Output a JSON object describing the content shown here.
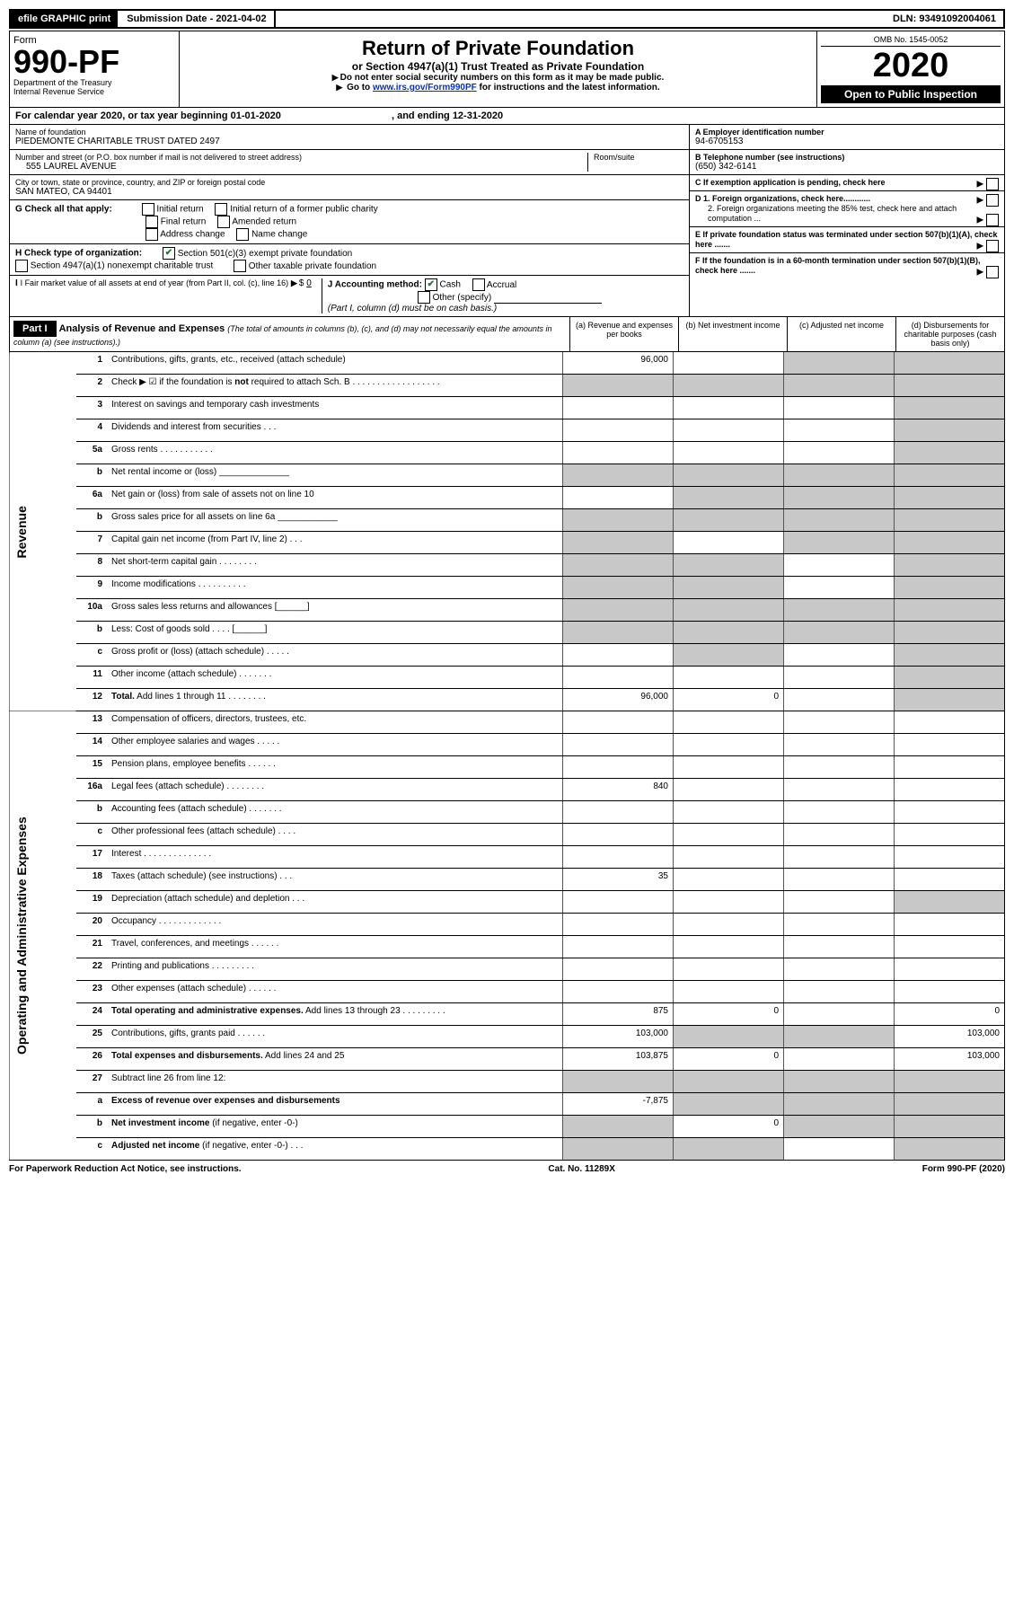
{
  "topbar": {
    "efile": "efile GRAPHIC print",
    "submission": "Submission Date - 2021-04-02",
    "dln": "DLN: 93491092004061"
  },
  "header": {
    "form_word": "Form",
    "form_number": "990-PF",
    "dept": "Department of the Treasury",
    "irs": "Internal Revenue Service",
    "title": "Return of Private Foundation",
    "subtitle": "or Section 4947(a)(1) Trust Treated as Private Foundation",
    "instr1": "Do not enter social security numbers on this form as it may be made public.",
    "instr2_pre": "Go to ",
    "instr2_link": "www.irs.gov/Form990PF",
    "instr2_post": " for instructions and the latest information.",
    "omb": "OMB No. 1545-0052",
    "year": "2020",
    "openpublic": "Open to Public Inspection"
  },
  "calendar": {
    "line": "For calendar year 2020, or tax year beginning 01-01-2020",
    "ending": ", and ending 12-31-2020"
  },
  "foundation": {
    "name_label": "Name of foundation",
    "name": "PIEDEMONTE CHARITABLE TRUST DATED 2497",
    "addr_label": "Number and street (or P.O. box number if mail is not delivered to street address)",
    "addr": "555 LAUREL AVENUE",
    "room_label": "Room/suite",
    "city_label": "City or town, state or province, country, and ZIP or foreign postal code",
    "city": "SAN MATEO, CA  94401"
  },
  "right_boxes": {
    "a_label": "A Employer identification number",
    "a_val": "94-6705153",
    "b_label": "B Telephone number (see instructions)",
    "b_val": "(650) 342-6141",
    "c_label": "C If exemption application is pending, check here",
    "d1": "D 1. Foreign organizations, check here............",
    "d2": "2. Foreign organizations meeting the 85% test, check here and attach computation ...",
    "e": "E  If private foundation status was terminated under section 507(b)(1)(A), check here .......",
    "f": "F  If the foundation is in a 60-month termination under section 507(b)(1)(B), check here ......."
  },
  "g": {
    "label": "G Check all that apply:",
    "opts": [
      "Initial return",
      "Initial return of a former public charity",
      "Final return",
      "Amended return",
      "Address change",
      "Name change"
    ]
  },
  "h": {
    "label": "H Check type of organization:",
    "opt1": "Section 501(c)(3) exempt private foundation",
    "opt2": "Section 4947(a)(1) nonexempt charitable trust",
    "opt3": "Other taxable private foundation"
  },
  "i": {
    "label": "I Fair market value of all assets at end of year (from Part II, col. (c), line 16)",
    "amount_prefix": "$",
    "amount": "0"
  },
  "j": {
    "label": "J Accounting method:",
    "cash": "Cash",
    "accrual": "Accrual",
    "other": "Other (specify)",
    "note": "(Part I, column (d) must be on cash basis.)"
  },
  "part1": {
    "label": "Part I",
    "title": "Analysis of Revenue and Expenses",
    "note": "(The total of amounts in columns (b), (c), and (d) may not necessarily equal the amounts in column (a) (see instructions).)",
    "col_a": "(a)   Revenue and expenses per books",
    "col_b": "(b)  Net investment income",
    "col_c": "(c)  Adjusted net income",
    "col_d": "(d)  Disbursements for charitable purposes (cash basis only)"
  },
  "side_labels": {
    "revenue": "Revenue",
    "expenses": "Operating and Administrative Expenses"
  },
  "rows": [
    {
      "n": "1",
      "desc": "Contributions, gifts, grants, etc., received (attach schedule)",
      "a": "96,000",
      "b": "",
      "c": "",
      "d": "",
      "shade": [
        "c",
        "d"
      ]
    },
    {
      "n": "2",
      "desc": "Check ▶ ☑ if the foundation is <b>not</b> required to attach Sch. B  .  .  .  .  .  .  .  .  .  .  .  .  .  .  .  .  .  .",
      "a": "",
      "b": "",
      "c": "",
      "d": "",
      "shade": [
        "a",
        "b",
        "c",
        "d"
      ]
    },
    {
      "n": "3",
      "desc": "Interest on savings and temporary cash investments",
      "a": "",
      "b": "",
      "c": "",
      "d": "",
      "shade": [
        "d"
      ]
    },
    {
      "n": "4",
      "desc": "Dividends and interest from securities   .   .   .",
      "a": "",
      "b": "",
      "c": "",
      "d": "",
      "shade": [
        "d"
      ]
    },
    {
      "n": "5a",
      "desc": "Gross rents   .   .   .   .   .   .   .   .   .   .   .",
      "a": "",
      "b": "",
      "c": "",
      "d": "",
      "shade": [
        "d"
      ]
    },
    {
      "n": "b",
      "desc": "Net rental income or (loss)  ______________",
      "a": "",
      "b": "",
      "c": "",
      "d": "",
      "shade": [
        "a",
        "b",
        "c",
        "d"
      ]
    },
    {
      "n": "6a",
      "desc": "Net gain or (loss) from sale of assets not on line 10",
      "a": "",
      "b": "",
      "c": "",
      "d": "",
      "shade": [
        "b",
        "c",
        "d"
      ]
    },
    {
      "n": "b",
      "desc": "Gross sales price for all assets on line 6a  ____________",
      "a": "",
      "b": "",
      "c": "",
      "d": "",
      "shade": [
        "a",
        "b",
        "c",
        "d"
      ]
    },
    {
      "n": "7",
      "desc": "Capital gain net income (from Part IV, line 2)   .   .   .",
      "a": "",
      "b": "",
      "c": "",
      "d": "",
      "shade": [
        "a",
        "c",
        "d"
      ]
    },
    {
      "n": "8",
      "desc": "Net short-term capital gain  .   .   .   .   .   .   .   .",
      "a": "",
      "b": "",
      "c": "",
      "d": "",
      "shade": [
        "a",
        "b",
        "d"
      ]
    },
    {
      "n": "9",
      "desc": "Income modifications  .   .   .   .   .   .   .   .   .   .",
      "a": "",
      "b": "",
      "c": "",
      "d": "",
      "shade": [
        "a",
        "b",
        "d"
      ]
    },
    {
      "n": "10a",
      "desc": "Gross sales less returns and allowances  [______]",
      "a": "",
      "b": "",
      "c": "",
      "d": "",
      "shade": [
        "a",
        "b",
        "c",
        "d"
      ]
    },
    {
      "n": "b",
      "desc": "Less: Cost of goods sold   .   .   .   .   [______]",
      "a": "",
      "b": "",
      "c": "",
      "d": "",
      "shade": [
        "a",
        "b",
        "c",
        "d"
      ]
    },
    {
      "n": "c",
      "desc": "Gross profit or (loss) (attach schedule)   .   .   .   .   .",
      "a": "",
      "b": "",
      "c": "",
      "d": "",
      "shade": [
        "b",
        "d"
      ]
    },
    {
      "n": "11",
      "desc": "Other income (attach schedule)   .   .   .   .   .   .   .",
      "a": "",
      "b": "",
      "c": "",
      "d": "",
      "shade": [
        "d"
      ]
    },
    {
      "n": "12",
      "desc": "<b>Total.</b> Add lines 1 through 11   .   .   .   .   .   .   .   .",
      "a": "96,000",
      "b": "0",
      "c": "",
      "d": "",
      "shade": [
        "d"
      ]
    }
  ],
  "exp_rows": [
    {
      "n": "13",
      "desc": "Compensation of officers, directors, trustees, etc.",
      "a": "",
      "b": "",
      "c": "",
      "d": ""
    },
    {
      "n": "14",
      "desc": "Other employee salaries and wages   .   .   .   .   .",
      "a": "",
      "b": "",
      "c": "",
      "d": ""
    },
    {
      "n": "15",
      "desc": "Pension plans, employee benefits   .   .   .   .   .   .",
      "a": "",
      "b": "",
      "c": "",
      "d": ""
    },
    {
      "n": "16a",
      "desc": "Legal fees (attach schedule)  .   .   .   .   .   .   .   .",
      "a": "840",
      "b": "",
      "c": "",
      "d": ""
    },
    {
      "n": "b",
      "desc": "Accounting fees (attach schedule)  .   .   .   .   .   .   .",
      "a": "",
      "b": "",
      "c": "",
      "d": ""
    },
    {
      "n": "c",
      "desc": "Other professional fees (attach schedule)   .   .   .   .",
      "a": "",
      "b": "",
      "c": "",
      "d": ""
    },
    {
      "n": "17",
      "desc": "Interest   .   .   .   .   .   .   .   .   .   .   .   .   .   .",
      "a": "",
      "b": "",
      "c": "",
      "d": ""
    },
    {
      "n": "18",
      "desc": "Taxes (attach schedule) (see instructions)   .   .   .",
      "a": "35",
      "b": "",
      "c": "",
      "d": ""
    },
    {
      "n": "19",
      "desc": "Depreciation (attach schedule) and depletion   .   .   .",
      "a": "",
      "b": "",
      "c": "",
      "d": "",
      "shade": [
        "d"
      ]
    },
    {
      "n": "20",
      "desc": "Occupancy  .   .   .   .   .   .   .   .   .   .   .   .   .",
      "a": "",
      "b": "",
      "c": "",
      "d": ""
    },
    {
      "n": "21",
      "desc": "Travel, conferences, and meetings  .   .   .   .   .   .",
      "a": "",
      "b": "",
      "c": "",
      "d": ""
    },
    {
      "n": "22",
      "desc": "Printing and publications  .   .   .   .   .   .   .   .   .",
      "a": "",
      "b": "",
      "c": "",
      "d": ""
    },
    {
      "n": "23",
      "desc": "Other expenses (attach schedule)  .   .   .   .   .   .",
      "a": "",
      "b": "",
      "c": "",
      "d": ""
    },
    {
      "n": "24",
      "desc": "<b>Total operating and administrative expenses.</b> Add lines 13 through 23   .   .   .   .   .   .   .   .   .",
      "a": "875",
      "b": "0",
      "c": "",
      "d": "0"
    },
    {
      "n": "25",
      "desc": "Contributions, gifts, grants paid   .   .   .   .   .   .",
      "a": "103,000",
      "b": "",
      "c": "",
      "d": "103,000",
      "shade": [
        "b",
        "c"
      ]
    },
    {
      "n": "26",
      "desc": "<b>Total expenses and disbursements.</b> Add lines 24 and 25",
      "a": "103,875",
      "b": "0",
      "c": "",
      "d": "103,000"
    },
    {
      "n": "27",
      "desc": "Subtract line 26 from line 12:",
      "a": "",
      "b": "",
      "c": "",
      "d": "",
      "shade": [
        "a",
        "b",
        "c",
        "d"
      ]
    },
    {
      "n": "a",
      "desc": "<b>Excess of revenue over expenses and disbursements</b>",
      "a": "-7,875",
      "b": "",
      "c": "",
      "d": "",
      "shade": [
        "b",
        "c",
        "d"
      ]
    },
    {
      "n": "b",
      "desc": "<b>Net investment income</b> (if negative, enter -0-)",
      "a": "",
      "b": "0",
      "c": "",
      "d": "",
      "shade": [
        "a",
        "c",
        "d"
      ]
    },
    {
      "n": "c",
      "desc": "<b>Adjusted net income</b> (if negative, enter -0-)   .   .   .",
      "a": "",
      "b": "",
      "c": "",
      "d": "",
      "shade": [
        "a",
        "b",
        "d"
      ]
    }
  ],
  "footer": {
    "left": "For Paperwork Reduction Act Notice, see instructions.",
    "center": "Cat. No. 11289X",
    "right": "Form 990-PF (2020)"
  }
}
